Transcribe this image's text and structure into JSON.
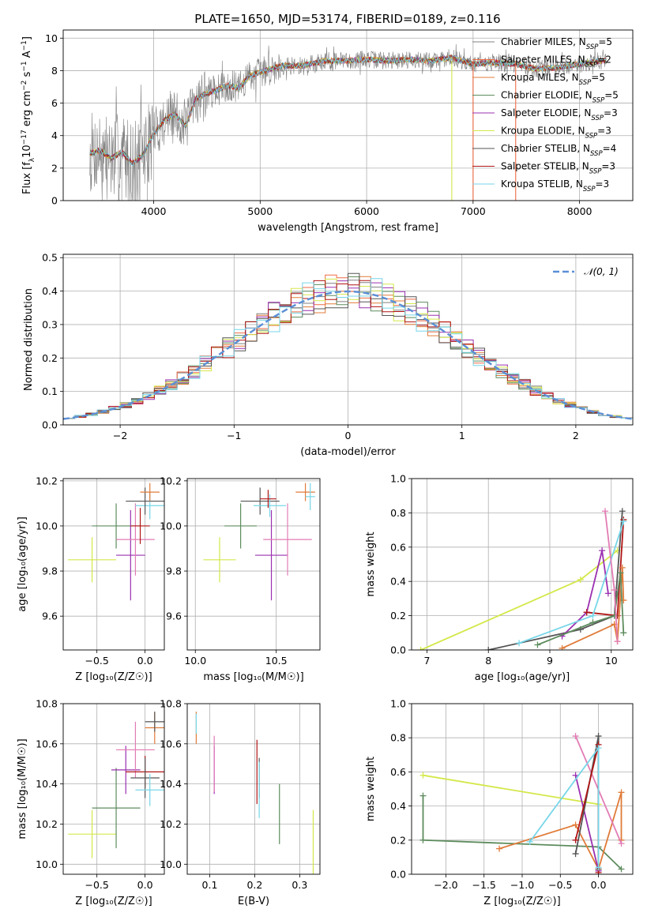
{
  "page_title": "PLATE=1650, MJD=53174, FIBERID=0189, z=0.116",
  "colors": {
    "chabrier_miles": "#808080",
    "salpeter_miles": "#ee6a44",
    "kroupa_miles": "#e07b39",
    "chabrier_elodie": "#5e8c5e",
    "salpeter_elodie": "#9b30b0",
    "kroupa_elodie": "#d4e84a",
    "chabrier_stelib": "#555555",
    "salpeter_stelib": "#b01515",
    "kroupa_stelib": "#77d6e8",
    "normal_fit": "#5b8fd6",
    "pink": "#e27cb4"
  },
  "chart_data": [
    {
      "id": "spectrum",
      "type": "line",
      "title": "PLATE=1650, MJD=53174, FIBERID=0189, z=0.116",
      "xlabel": "wavelength [Angstrom, rest frame]",
      "ylabel": "Flux [f_λ 10^-17 erg cm^-2 s^-1 A^-1]",
      "xlim": [
        3150,
        8500
      ],
      "ylim": [
        0,
        10.5
      ],
      "xticks": [
        4000,
        5000,
        6000,
        7000,
        8000
      ],
      "yticks": [
        0,
        2,
        4,
        6,
        8,
        10
      ],
      "grid": true,
      "legend_position": "top-right",
      "legend": [
        {
          "label": "Chabrier MILES, N",
          "sub": "SSP",
          "suffix": "=5",
          "color_key": "chabrier_miles"
        },
        {
          "label": "Salpeter MILES, N",
          "sub": "SSP",
          "suffix": "=2",
          "color_key": "salpeter_miles"
        },
        {
          "label": "Kroupa MILES, N",
          "sub": "SSP",
          "suffix": "=5",
          "color_key": "kroupa_miles"
        },
        {
          "label": "Chabrier ELODIE, N",
          "sub": "SSP",
          "suffix": "=5",
          "color_key": "chabrier_elodie"
        },
        {
          "label": "Salpeter ELODIE, N",
          "sub": "SSP",
          "suffix": "=3",
          "color_key": "salpeter_elodie"
        },
        {
          "label": "Kroupa ELODIE, N",
          "sub": "SSP",
          "suffix": "=3",
          "color_key": "kroupa_elodie"
        },
        {
          "label": "Chabrier STELIB, N",
          "sub": "SSP",
          "suffix": "=4",
          "color_key": "chabrier_stelib"
        },
        {
          "label": "Salpeter STELIB, N",
          "sub": "SSP",
          "suffix": "=3",
          "color_key": "salpeter_stelib"
        },
        {
          "label": "Kroupa STELIB, N",
          "sub": "SSP",
          "suffix": "=3",
          "color_key": "kroupa_stelib"
        }
      ],
      "model_curve": {
        "x": [
          3400,
          3500,
          3600,
          3700,
          3800,
          3900,
          4000,
          4100,
          4200,
          4300,
          4400,
          4500,
          4600,
          4700,
          4800,
          4900,
          5000,
          5200,
          5400,
          5600,
          5800,
          6000,
          6200,
          6400,
          6600,
          6800,
          7000,
          7200,
          7400,
          7600,
          7800,
          8000,
          8200
        ],
        "y": [
          2.9,
          3.1,
          2.6,
          3.0,
          2.3,
          2.8,
          4.1,
          5.0,
          5.3,
          4.6,
          6.3,
          6.6,
          6.8,
          7.1,
          6.9,
          7.7,
          7.9,
          8.3,
          8.3,
          8.6,
          8.6,
          8.7,
          8.6,
          8.7,
          8.6,
          8.8,
          8.4,
          8.5,
          8.4,
          8.1,
          8.2,
          8.4,
          8.6
        ]
      },
      "dips": [
        {
          "x": 6800,
          "color_key": "kroupa_elodie"
        },
        {
          "x": 7000,
          "color_key": "salpeter_miles"
        },
        {
          "x": 7400,
          "color_key": "salpeter_miles"
        }
      ]
    },
    {
      "id": "residuals",
      "type": "line",
      "xlabel": "(data-model)/error",
      "ylabel": "Normed distribution",
      "xlim": [
        -2.5,
        2.5
      ],
      "ylim": [
        0,
        0.51
      ],
      "xticks": [
        -2,
        -1,
        0,
        1,
        2
      ],
      "yticks": [
        0.0,
        0.1,
        0.2,
        0.3,
        0.4,
        0.5
      ],
      "grid": true,
      "legend_position": "top-right",
      "legend": [
        {
          "label": "𝒩(0, 1)",
          "color_key": "normal_fit"
        }
      ],
      "bin_width": 0.1
    },
    {
      "id": "age-vs-z",
      "type": "scatter",
      "xlabel": "Z [log₁₀(Z/Z☉)]",
      "ylabel": "age  [log₁₀(age/yr)]",
      "xlim": [
        -0.85,
        0.2
      ],
      "ylim": [
        9.45,
        10.21
      ],
      "xticks": [
        -0.5,
        0.0
      ],
      "yticks": [
        9.6,
        9.8,
        10.0,
        10.2
      ],
      "grid": true,
      "points": [
        {
          "x": -0.55,
          "y": 9.85,
          "xerr": 0.25,
          "yerr": 0.1,
          "color_key": "kroupa_elodie"
        },
        {
          "x": -0.3,
          "y": 10.0,
          "xerr": 0.25,
          "yerr": 0.1,
          "color_key": "chabrier_elodie"
        },
        {
          "x": -0.15,
          "y": 9.87,
          "xerr": 0.15,
          "yerr": 0.2,
          "color_key": "salpeter_elodie"
        },
        {
          "x": -0.1,
          "y": 9.94,
          "xerr": 0.2,
          "yerr": 0.16,
          "color_key": "pink"
        },
        {
          "x": 0.05,
          "y": 10.09,
          "xerr": 0.15,
          "yerr": 0.06,
          "color_key": "kroupa_stelib"
        },
        {
          "x": 0.0,
          "y": 10.11,
          "xerr": 0.2,
          "yerr": 0.06,
          "color_key": "chabrier_stelib"
        },
        {
          "x": 0.05,
          "y": 10.15,
          "xerr": 0.1,
          "yerr": 0.04,
          "color_key": "kroupa_miles"
        },
        {
          "x": -0.05,
          "y": 10.0,
          "xerr": 0.1,
          "yerr": 0.08,
          "color_key": "salpeter_stelib"
        }
      ]
    },
    {
      "id": "age-vs-mass",
      "type": "scatter",
      "xlabel": "mass [log₁₀(M/M☉)]",
      "ylabel": "",
      "xlim": [
        9.95,
        10.77
      ],
      "ylim": [
        9.45,
        10.21
      ],
      "xticks": [
        10.0,
        10.5
      ],
      "yticks": [
        9.6,
        9.8,
        10.0,
        10.2
      ],
      "grid": true,
      "points": [
        {
          "x": 10.15,
          "y": 9.85,
          "xerr": 0.1,
          "yerr": 0.1,
          "color_key": "kroupa_elodie"
        },
        {
          "x": 10.28,
          "y": 10.0,
          "xerr": 0.1,
          "yerr": 0.1,
          "color_key": "chabrier_elodie"
        },
        {
          "x": 10.47,
          "y": 9.87,
          "xerr": 0.1,
          "yerr": 0.2,
          "color_key": "salpeter_elodie"
        },
        {
          "x": 10.57,
          "y": 9.94,
          "xerr": 0.15,
          "yerr": 0.16,
          "color_key": "pink"
        },
        {
          "x": 10.4,
          "y": 10.11,
          "xerr": 0.12,
          "yerr": 0.06,
          "color_key": "chabrier_stelib"
        },
        {
          "x": 10.46,
          "y": 10.09,
          "xerr": 0.1,
          "yerr": 0.05,
          "color_key": "kroupa_stelib"
        },
        {
          "x": 10.45,
          "y": 10.12,
          "xerr": 0.05,
          "yerr": 0.04,
          "color_key": "salpeter_stelib"
        },
        {
          "x": 10.68,
          "y": 10.15,
          "xerr": 0.06,
          "yerr": 0.04,
          "color_key": "kroupa_miles"
        },
        {
          "x": 10.71,
          "y": 10.13,
          "xerr": 0.03,
          "yerr": 0.06,
          "color_key": "kroupa_stelib"
        }
      ]
    },
    {
      "id": "mass-weight-vs-age",
      "type": "line",
      "xlabel": "age  [log₁₀(age/yr)]",
      "ylabel": "mass weight",
      "xlim": [
        6.75,
        10.35
      ],
      "ylim": [
        0,
        1.0
      ],
      "xticks": [
        7,
        8,
        9,
        10
      ],
      "yticks": [
        0.0,
        0.2,
        0.4,
        0.6,
        0.8,
        1.0
      ],
      "grid": true,
      "series": [
        {
          "color_key": "kroupa_elodie",
          "x": [
            6.9,
            9.5,
            10.1
          ],
          "y": [
            0.0,
            0.41,
            0.58
          ]
        },
        {
          "color_key": "chabrier_stelib",
          "x": [
            8.0,
            9.5,
            10.05,
            10.18
          ],
          "y": [
            0.0,
            0.12,
            0.2,
            0.81
          ]
        },
        {
          "color_key": "salpeter_elodie",
          "x": [
            9.2,
            9.6,
            9.85,
            9.95
          ],
          "y": [
            0.08,
            0.22,
            0.58,
            0.33
          ]
        },
        {
          "color_key": "salpeter_stelib",
          "x": [
            9.6,
            10.1,
            10.2
          ],
          "y": [
            0.22,
            0.2,
            0.76
          ]
        },
        {
          "color_key": "kroupa_miles",
          "x": [
            9.2,
            10.05,
            10.1,
            10.18,
            10.2
          ],
          "y": [
            0.01,
            0.15,
            0.05,
            0.48,
            0.29
          ]
        },
        {
          "color_key": "chabrier_elodie",
          "x": [
            8.8,
            9.7,
            10.05,
            10.15,
            10.2
          ],
          "y": [
            0.03,
            0.16,
            0.2,
            0.45,
            0.1
          ]
        },
        {
          "color_key": "kroupa_stelib",
          "x": [
            8.5,
            9.7,
            10.2
          ],
          "y": [
            0.04,
            0.2,
            0.75
          ]
        },
        {
          "color_key": "pink",
          "x": [
            9.9,
            10.05,
            10.1
          ],
          "y": [
            0.81,
            0.35,
            0.05
          ]
        }
      ]
    },
    {
      "id": "mass-vs-z",
      "type": "scatter",
      "xlabel": "Z [log₁₀(Z/Z☉)]",
      "ylabel": "mass [log₁₀(M/M☉)]",
      "xlim": [
        -0.85,
        0.2
      ],
      "ylim": [
        9.95,
        10.8
      ],
      "xticks": [
        -0.5,
        0.0
      ],
      "yticks": [
        10.0,
        10.2,
        10.4,
        10.6,
        10.8
      ],
      "grid": true,
      "points": [
        {
          "x": -0.55,
          "y": 10.15,
          "xerr": 0.25,
          "yerr": 0.12,
          "color_key": "kroupa_elodie"
        },
        {
          "x": -0.3,
          "y": 10.28,
          "xerr": 0.25,
          "yerr": 0.2,
          "color_key": "chabrier_elodie"
        },
        {
          "x": -0.2,
          "y": 10.47,
          "xerr": 0.15,
          "yerr": 0.12,
          "color_key": "salpeter_elodie"
        },
        {
          "x": -0.1,
          "y": 10.57,
          "xerr": 0.2,
          "yerr": 0.14,
          "color_key": "pink"
        },
        {
          "x": 0.0,
          "y": 10.46,
          "xerr": 0.2,
          "yerr": 0.08,
          "color_key": "salpeter_stelib"
        },
        {
          "x": 0.0,
          "y": 10.43,
          "xerr": 0.15,
          "yerr": 0.1,
          "color_key": "chabrier_stelib"
        },
        {
          "x": 0.05,
          "y": 10.37,
          "xerr": 0.15,
          "yerr": 0.08,
          "color_key": "kroupa_stelib"
        },
        {
          "x": 0.1,
          "y": 10.68,
          "xerr": 0.1,
          "yerr": 0.08,
          "color_key": "kroupa_miles"
        },
        {
          "x": 0.1,
          "y": 10.71,
          "xerr": 0.1,
          "yerr": 0.05,
          "color_key": "chabrier_stelib"
        }
      ]
    },
    {
      "id": "mass-vs-ebv",
      "type": "scatter",
      "xlabel": "E(B-V)",
      "ylabel": "",
      "xlim": [
        0.05,
        0.345
      ],
      "ylim": [
        9.95,
        10.8
      ],
      "xticks": [
        0.1,
        0.2,
        0.3
      ],
      "yticks": [
        10.0,
        10.2,
        10.4,
        10.6,
        10.8
      ],
      "grid": true,
      "points": [
        {
          "x": 0.07,
          "y": 10.68,
          "xerr": 0.0,
          "yerr": 0.08,
          "color_key": "kroupa_miles"
        },
        {
          "x": 0.07,
          "y": 10.7,
          "xerr": 0.0,
          "yerr": 0.05,
          "color_key": "kroupa_stelib"
        },
        {
          "x": 0.11,
          "y": 10.47,
          "xerr": 0.0,
          "yerr": 0.12,
          "color_key": "salpeter_elodie"
        },
        {
          "x": 0.11,
          "y": 10.5,
          "xerr": 0.0,
          "yerr": 0.14,
          "color_key": "pink"
        },
        {
          "x": 0.205,
          "y": 10.46,
          "xerr": 0.0,
          "yerr": 0.16,
          "color_key": "salpeter_stelib"
        },
        {
          "x": 0.21,
          "y": 10.43,
          "xerr": 0.0,
          "yerr": 0.1,
          "color_key": "chabrier_stelib"
        },
        {
          "x": 0.21,
          "y": 10.37,
          "xerr": 0.0,
          "yerr": 0.14,
          "color_key": "kroupa_stelib"
        },
        {
          "x": 0.255,
          "y": 10.25,
          "xerr": 0.0,
          "yerr": 0.15,
          "color_key": "chabrier_elodie"
        },
        {
          "x": 0.33,
          "y": 10.1,
          "xerr": 0.0,
          "yerr": 0.17,
          "color_key": "kroupa_elodie"
        }
      ]
    },
    {
      "id": "mass-weight-vs-z",
      "type": "line",
      "xlabel": "Z [log₁₀(Z/Z☉)]",
      "ylabel": "mass weight",
      "xlim": [
        -2.45,
        0.45
      ],
      "ylim": [
        0,
        1.0
      ],
      "xticks": [
        -2.0,
        -1.5,
        -1.0,
        -0.5,
        0.0
      ],
      "yticks": [
        0.0,
        0.2,
        0.4,
        0.6,
        0.8,
        1.0
      ],
      "grid": true,
      "series": [
        {
          "color_key": "kroupa_elodie",
          "x": [
            -2.3,
            0.0
          ],
          "y": [
            0.58,
            0.41
          ]
        },
        {
          "color_key": "chabrier_elodie",
          "x": [
            -2.3,
            -2.3,
            0.0,
            0.3
          ],
          "y": [
            0.46,
            0.2,
            0.16,
            0.03
          ]
        },
        {
          "color_key": "kroupa_miles",
          "x": [
            -1.3,
            -0.3,
            0.0,
            0.3,
            0.3
          ],
          "y": [
            0.15,
            0.29,
            0.03,
            0.48,
            0.2
          ]
        },
        {
          "color_key": "salpeter_elodie",
          "x": [
            -0.3,
            0.0
          ],
          "y": [
            0.58,
            0.02
          ]
        },
        {
          "color_key": "pink",
          "x": [
            -0.3,
            0.3
          ],
          "y": [
            0.81,
            0.18
          ]
        },
        {
          "color_key": "chabrier_stelib",
          "x": [
            -0.3,
            0.0,
            0.0
          ],
          "y": [
            0.12,
            0.81,
            0.03
          ]
        },
        {
          "color_key": "salpeter_stelib",
          "x": [
            -0.3,
            0.0,
            0.0
          ],
          "y": [
            0.2,
            0.76,
            0.01
          ]
        },
        {
          "color_key": "kroupa_stelib",
          "x": [
            -0.9,
            0.0,
            0.0
          ],
          "y": [
            0.19,
            0.74,
            0.04
          ]
        }
      ]
    }
  ]
}
